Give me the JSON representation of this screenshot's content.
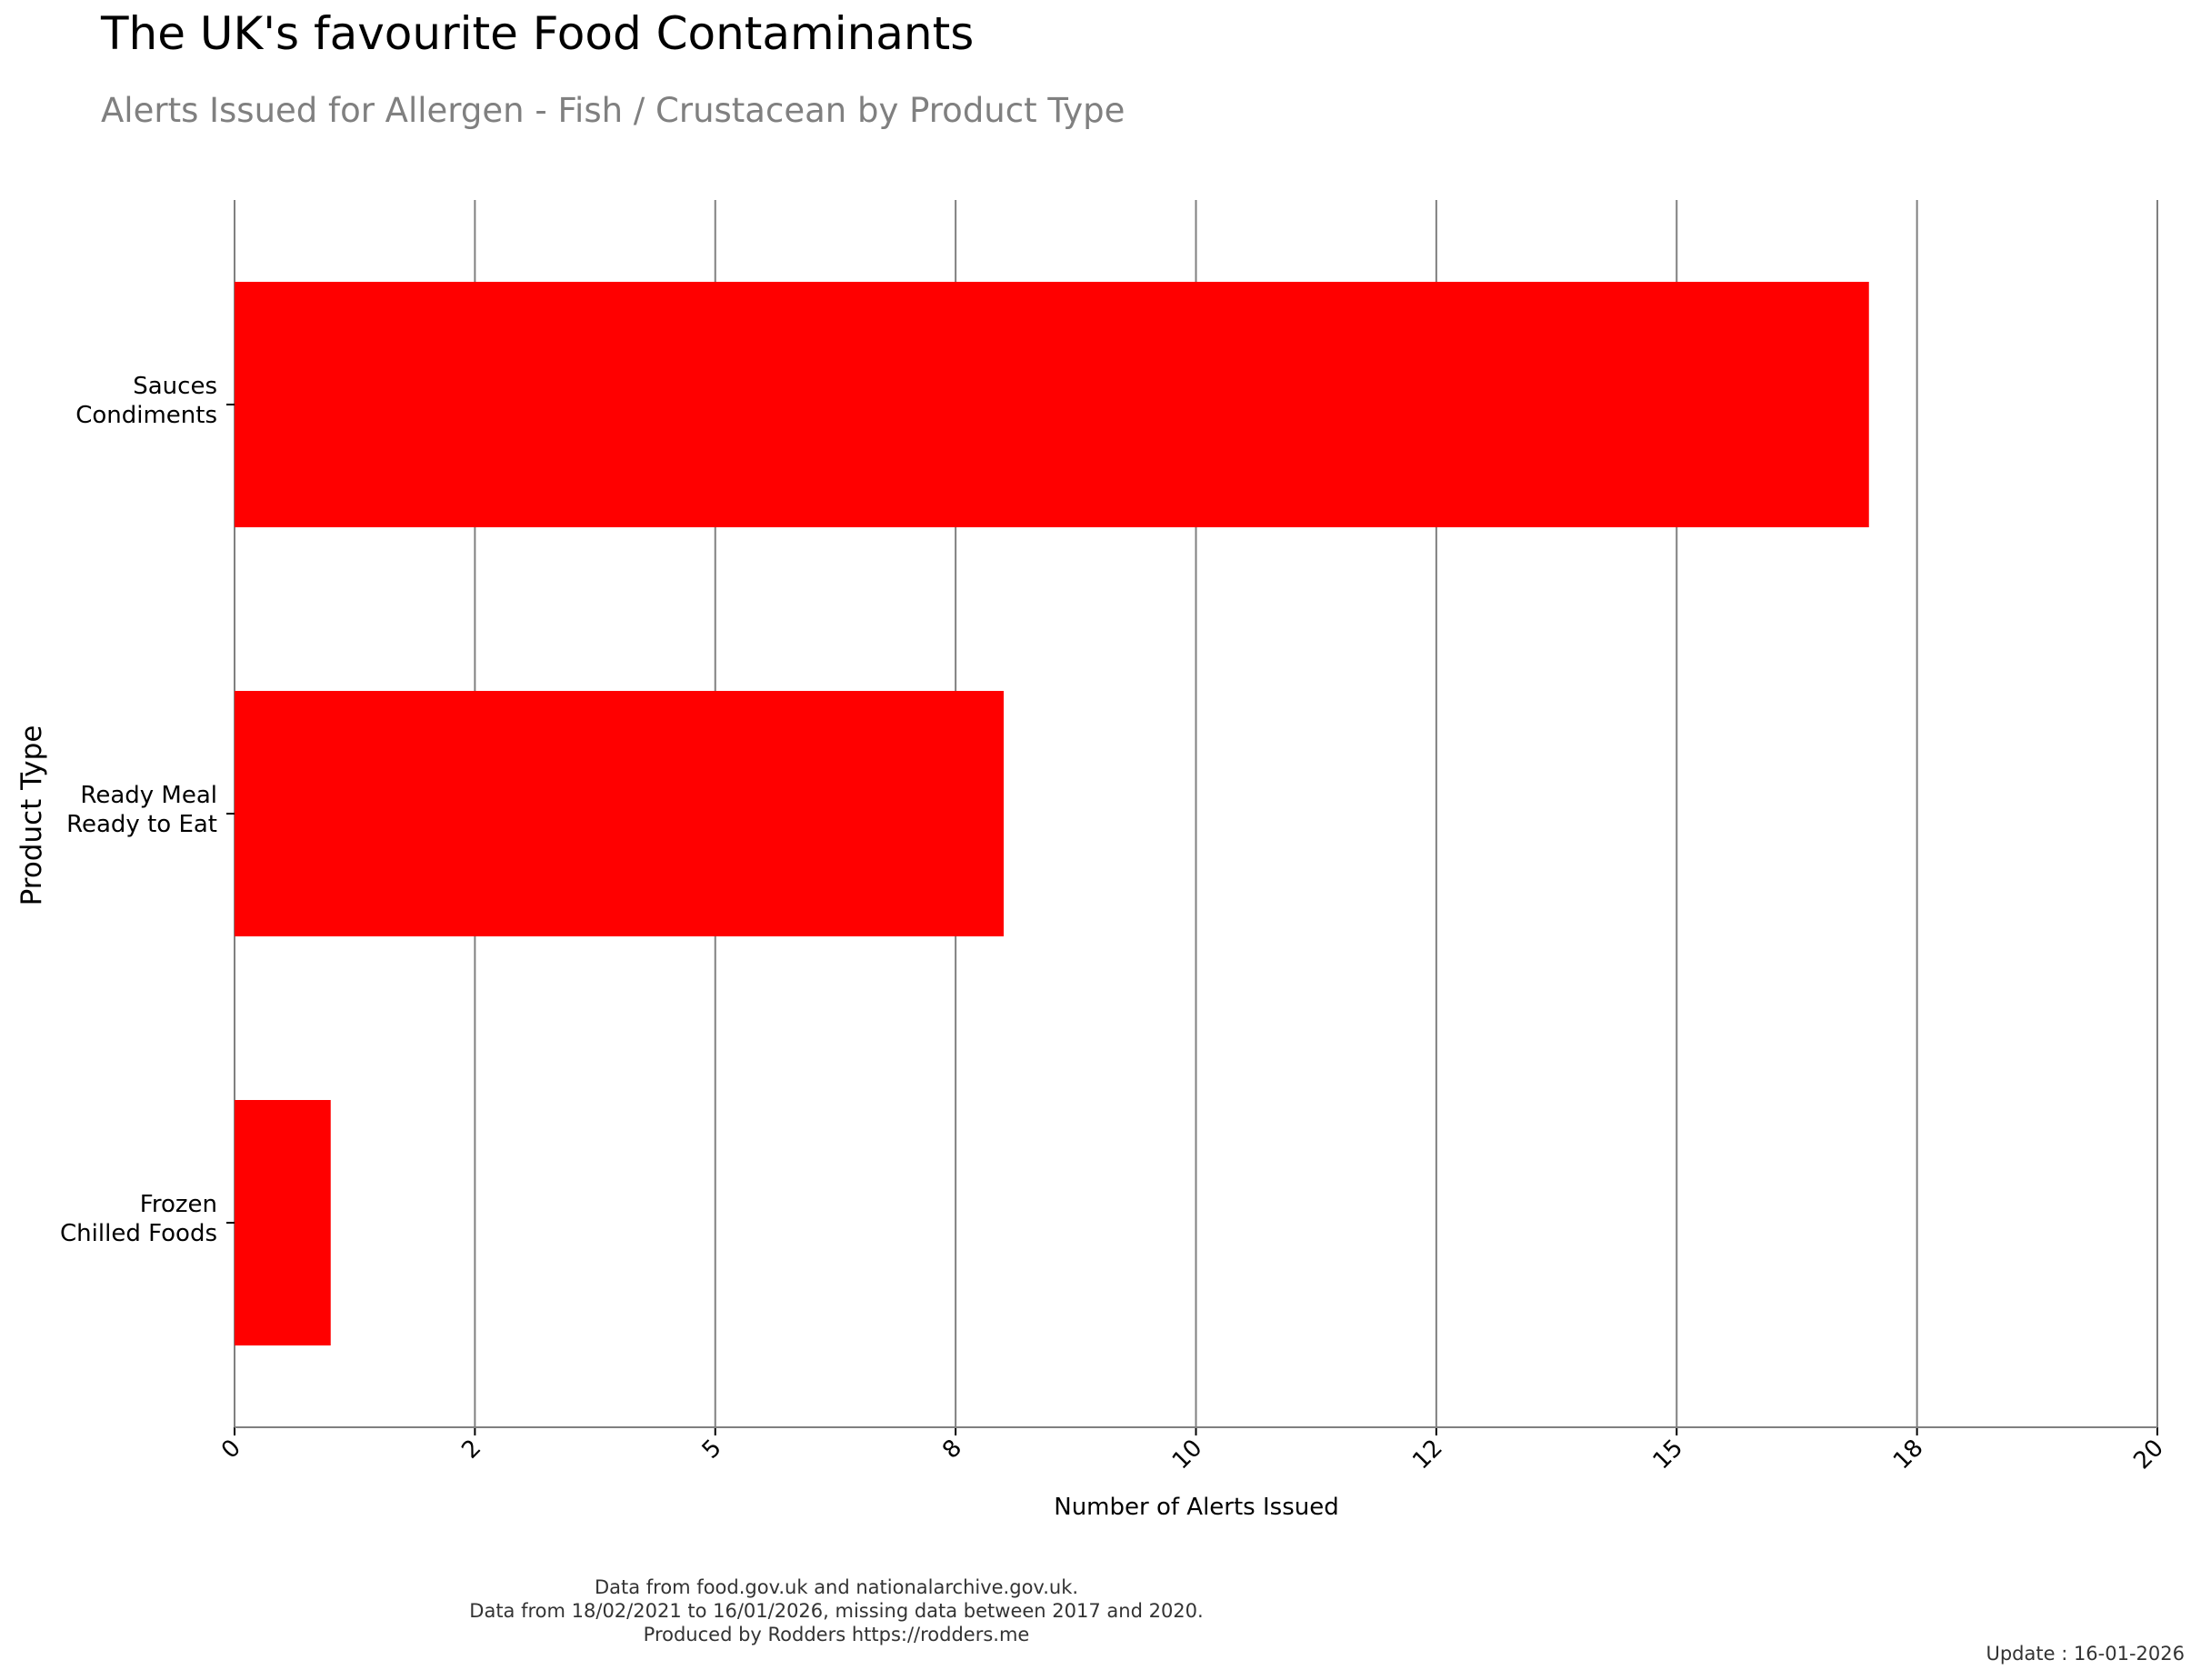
{
  "title": "The UK's favourite Food Contaminants",
  "subtitle": "Alerts Issued for Allergen - Fish / Crustacean by Product Type",
  "footer": {
    "line1": "Data from food.gov.uk and nationalarchive.gov.uk.",
    "line2": "Data from 18/02/2021 to 16/01/2026, missing data between 2017 and 2020.",
    "line3": "Produced by Rodders https://rodders.me",
    "update": "Update : 16-01-2026"
  },
  "colors": {
    "bar": "#ff0000",
    "grid": "#808080"
  },
  "chart_data": {
    "type": "bar",
    "orientation": "horizontal",
    "categories": [
      [
        "Sauces",
        "Condiments"
      ],
      [
        "Ready Meal",
        "Ready to Eat"
      ],
      [
        "Frozen",
        "Chilled Foods"
      ]
    ],
    "values": [
      17,
      8,
      1
    ],
    "xlabel": "Number of Alerts Issued",
    "ylabel": "Product Type",
    "xlim": [
      0,
      20
    ],
    "xticks": [
      {
        "value": 0,
        "label": "0"
      },
      {
        "value": 2.5,
        "label": "2"
      },
      {
        "value": 5,
        "label": "5"
      },
      {
        "value": 7.5,
        "label": "8"
      },
      {
        "value": 10,
        "label": "10"
      },
      {
        "value": 12.5,
        "label": "12"
      },
      {
        "value": 15,
        "label": "15"
      },
      {
        "value": 17.5,
        "label": "18"
      },
      {
        "value": 20,
        "label": "20"
      }
    ],
    "grid": true
  }
}
